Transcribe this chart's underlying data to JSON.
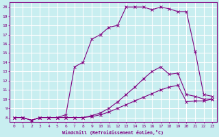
{
  "xlabel": "Windchill (Refroidissement éolien,°C)",
  "background_color": "#c8eef0",
  "line_color": "#800080",
  "grid_color": "#ffffff",
  "xlim": [
    -0.5,
    23.5
  ],
  "ylim": [
    7.5,
    20.5
  ],
  "xticks": [
    0,
    1,
    2,
    3,
    4,
    5,
    6,
    7,
    8,
    9,
    10,
    11,
    12,
    13,
    14,
    15,
    16,
    17,
    18,
    19,
    20,
    21,
    22,
    23
  ],
  "yticks": [
    8,
    9,
    10,
    11,
    12,
    13,
    14,
    15,
    16,
    17,
    18,
    19,
    20
  ],
  "curves": [
    {
      "x": [
        0,
        1,
        2,
        3,
        4,
        5,
        6,
        7,
        8,
        9,
        10,
        11,
        12,
        13,
        14,
        15,
        16,
        17,
        18,
        19,
        20,
        21,
        22,
        23
      ],
      "y": [
        8,
        8,
        7.7,
        8,
        8,
        8,
        8.3,
        13.5,
        14.0,
        16.5,
        17.0,
        17.8,
        18.0,
        20.0,
        20.0,
        20.0,
        19.7,
        20.0,
        19.8,
        19.5,
        19.5,
        15.2,
        10.5,
        10.3
      ]
    },
    {
      "x": [
        0,
        1,
        2,
        3,
        4,
        5,
        6,
        7,
        8,
        9,
        10,
        11,
        12,
        13,
        14,
        15,
        16,
        17,
        18,
        19,
        20,
        21,
        22,
        23
      ],
      "y": [
        8,
        8,
        7.7,
        8,
        8,
        8,
        8.0,
        8.0,
        8.0,
        8.2,
        8.5,
        9.0,
        9.7,
        10.5,
        11.3,
        12.2,
        13.0,
        13.5,
        12.7,
        12.8,
        10.5,
        10.3,
        10.0,
        10.0
      ]
    },
    {
      "x": [
        0,
        1,
        2,
        3,
        4,
        5,
        6,
        7,
        8,
        9,
        10,
        11,
        12,
        13,
        14,
        15,
        16,
        17,
        18,
        19,
        20,
        21,
        22,
        23
      ],
      "y": [
        8,
        8,
        7.7,
        8,
        8,
        8,
        8.0,
        8.0,
        8.0,
        8.1,
        8.3,
        8.6,
        9.0,
        9.4,
        9.8,
        10.2,
        10.6,
        11.0,
        11.3,
        11.5,
        9.7,
        9.8,
        9.8,
        10.0
      ]
    }
  ]
}
